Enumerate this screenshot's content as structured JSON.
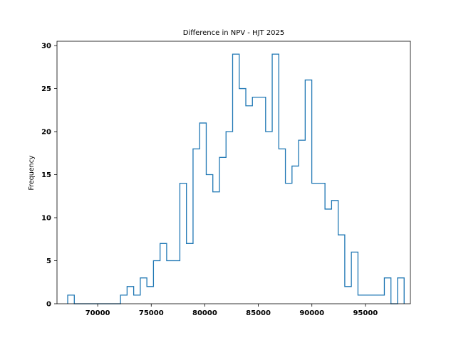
{
  "chart_data": {
    "type": "histogram",
    "title": "Difference in NPV - HJT 2025",
    "xlabel": "",
    "ylabel": "Frequency",
    "xlim": [
      66200,
      99200
    ],
    "ylim": [
      0,
      30.5
    ],
    "xticks": [
      70000,
      75000,
      80000,
      85000,
      90000,
      95000
    ],
    "yticks": [
      0,
      5,
      10,
      15,
      20,
      25,
      30
    ],
    "grid": false,
    "series": [
      {
        "color": "#1f77b4",
        "bin_start": 67200,
        "bin_width": 616,
        "counts": [
          1,
          0,
          0,
          0,
          0,
          0,
          0,
          0,
          1,
          2,
          1,
          3,
          2,
          5,
          7,
          5,
          5,
          14,
          7,
          18,
          21,
          15,
          13,
          17,
          20,
          29,
          25,
          23,
          24,
          24,
          20,
          29,
          18,
          14,
          16,
          19,
          26,
          14,
          14,
          11,
          12,
          8,
          2,
          6,
          1,
          1,
          1,
          1,
          3,
          0,
          3
        ]
      }
    ]
  }
}
